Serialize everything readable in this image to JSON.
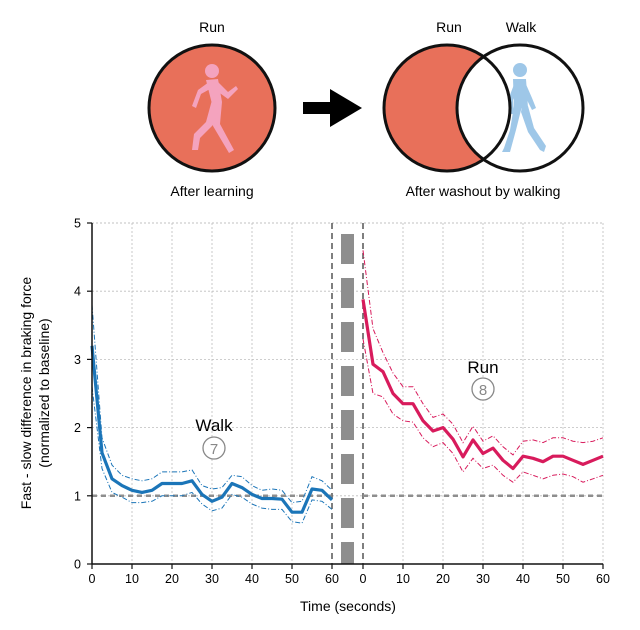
{
  "diagram": {
    "left": {
      "label": "Run",
      "caption": "After learning"
    },
    "right": {
      "label_run": "Run",
      "label_walk": "Walk",
      "caption": "After washout by walking"
    },
    "colors": {
      "run_fill": "#E8705A",
      "runner": "#F4A3BE",
      "walker": "#9EC7E8",
      "arrow": "#000000"
    },
    "icons": {
      "runner": "running-person-icon",
      "walker": "walking-person-icon"
    }
  },
  "chart_data": [
    {
      "type": "line",
      "x": [
        0,
        2.5,
        5,
        7.5,
        10,
        12.5,
        15,
        17.5,
        20,
        22.5,
        25,
        27.5,
        30,
        32.5,
        35,
        37.5,
        40,
        42.5,
        45,
        47.5,
        50,
        52.5,
        55,
        57.5,
        60
      ],
      "series": [
        {
          "values": [
            3.2,
            1.63,
            1.25,
            1.15,
            1.08,
            1.05,
            1.08,
            1.18,
            1.18,
            1.18,
            1.22,
            1.02,
            0.92,
            0.98,
            1.18,
            1.12,
            1.02,
            0.96,
            0.96,
            0.95,
            0.76,
            0.76,
            1.1,
            1.08,
            0.94
          ],
          "upper": [
            3.8,
            1.85,
            1.45,
            1.3,
            1.25,
            1.22,
            1.25,
            1.35,
            1.35,
            1.35,
            1.38,
            1.15,
            1.1,
            1.12,
            1.3,
            1.28,
            1.15,
            1.08,
            1.1,
            1.08,
            0.9,
            0.92,
            1.28,
            1.22,
            1.08
          ],
          "lower": [
            2.6,
            1.4,
            1.05,
            0.98,
            0.9,
            0.9,
            0.92,
            1.0,
            1.0,
            1.0,
            1.05,
            0.88,
            0.78,
            0.82,
            1.02,
            0.98,
            0.88,
            0.82,
            0.8,
            0.8,
            0.62,
            0.6,
            0.94,
            0.92,
            0.8
          ]
        }
      ],
      "text": "Walk",
      "badge": "7",
      "color": "#1B75B8",
      "ylim": [
        0,
        5
      ],
      "xlim": [
        0,
        60
      ]
    },
    {
      "type": "line",
      "x": [
        0,
        2.5,
        5,
        7.5,
        10,
        12.5,
        15,
        17.5,
        20,
        22.5,
        25,
        27.5,
        30,
        32.5,
        35,
        37.5,
        40,
        42.5,
        45,
        47.5,
        50,
        52.5,
        55,
        57.5,
        60
      ],
      "series": [
        {
          "values": [
            3.88,
            2.93,
            2.82,
            2.5,
            2.35,
            2.35,
            2.1,
            1.95,
            2.0,
            1.83,
            1.57,
            1.82,
            1.62,
            1.7,
            1.52,
            1.4,
            1.58,
            1.55,
            1.5,
            1.58,
            1.58,
            1.52,
            1.46,
            1.52,
            1.58
          ],
          "upper": [
            4.6,
            3.45,
            3.1,
            2.8,
            2.6,
            2.6,
            2.35,
            2.15,
            2.2,
            2.05,
            1.78,
            2.02,
            1.8,
            1.88,
            1.72,
            1.6,
            1.8,
            1.82,
            1.78,
            1.85,
            1.85,
            1.8,
            1.78,
            1.8,
            1.85
          ],
          "lower": [
            3.3,
            2.5,
            2.45,
            2.2,
            2.1,
            2.08,
            1.85,
            1.72,
            1.78,
            1.62,
            1.35,
            1.55,
            1.4,
            1.45,
            1.3,
            1.2,
            1.35,
            1.3,
            1.25,
            1.3,
            1.32,
            1.28,
            1.2,
            1.25,
            1.3
          ]
        }
      ],
      "text": "Run",
      "badge": "8",
      "color": "#D81B5C",
      "ylim": [
        0,
        5
      ],
      "xlim": [
        0,
        60
      ]
    }
  ],
  "axes": {
    "ylabel_line1": "Fast - slow difference in  braking force",
    "ylabel_line2": "(normalized to baseline)",
    "xlabel": "Time (seconds)",
    "yticks": [
      "0",
      "1",
      "2",
      "3",
      "4",
      "5"
    ],
    "xticks_left": [
      "0",
      "10",
      "20",
      "30",
      "40",
      "50",
      "60"
    ],
    "xticks_right": [
      "0",
      "10",
      "20",
      "30",
      "40",
      "50",
      "60"
    ],
    "baseline": 1,
    "grid": true
  }
}
